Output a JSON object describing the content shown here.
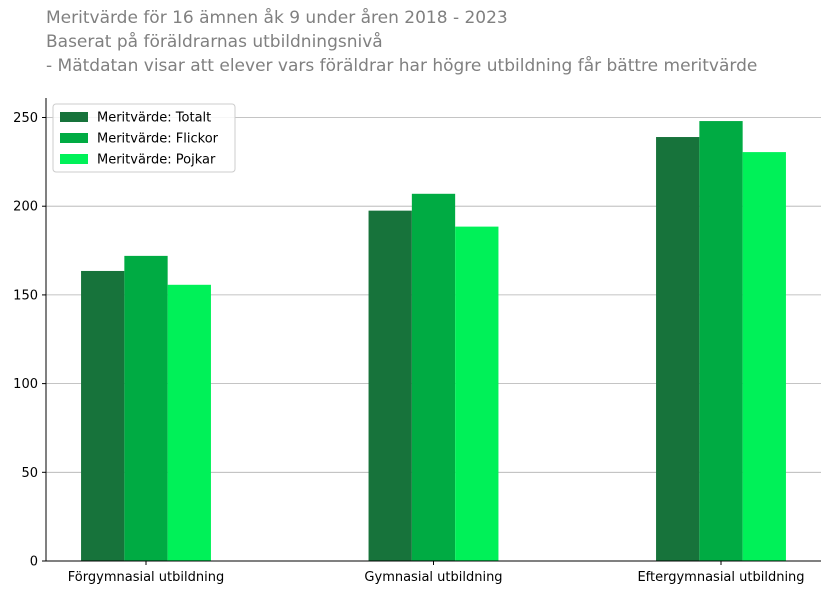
{
  "chart_data": {
    "type": "bar",
    "title_lines": [
      "Meritvärde för 16 ämnen åk 9 under åren 2018 - 2023",
      "Baserat på föräldrarnas utbildningsnivå",
      "- Mätdatan visar att elever vars föräldrar har högre utbildning får bättre meritvärde"
    ],
    "categories": [
      "Förgymnasial utbildning",
      "Gymnasial utbildning",
      "Eftergymnasial utbildning"
    ],
    "series": [
      {
        "name": "Meritvärde: Totalt",
        "values": [
          163.5,
          197.5,
          239
        ],
        "color": "#17733b"
      },
      {
        "name": "Meritvärde: Flickor",
        "values": [
          172,
          207,
          248
        ],
        "color": "#00ab43"
      },
      {
        "name": "Meritvärde: Pojkar",
        "values": [
          155.7,
          188.5,
          230.5
        ],
        "color": "#00f158"
      }
    ],
    "yticks": [
      0,
      50,
      100,
      150,
      200,
      250
    ],
    "ylim": [
      0,
      261
    ],
    "grid": "horizontal",
    "legend_position": "top-left",
    "xlabel": "",
    "ylabel": ""
  }
}
